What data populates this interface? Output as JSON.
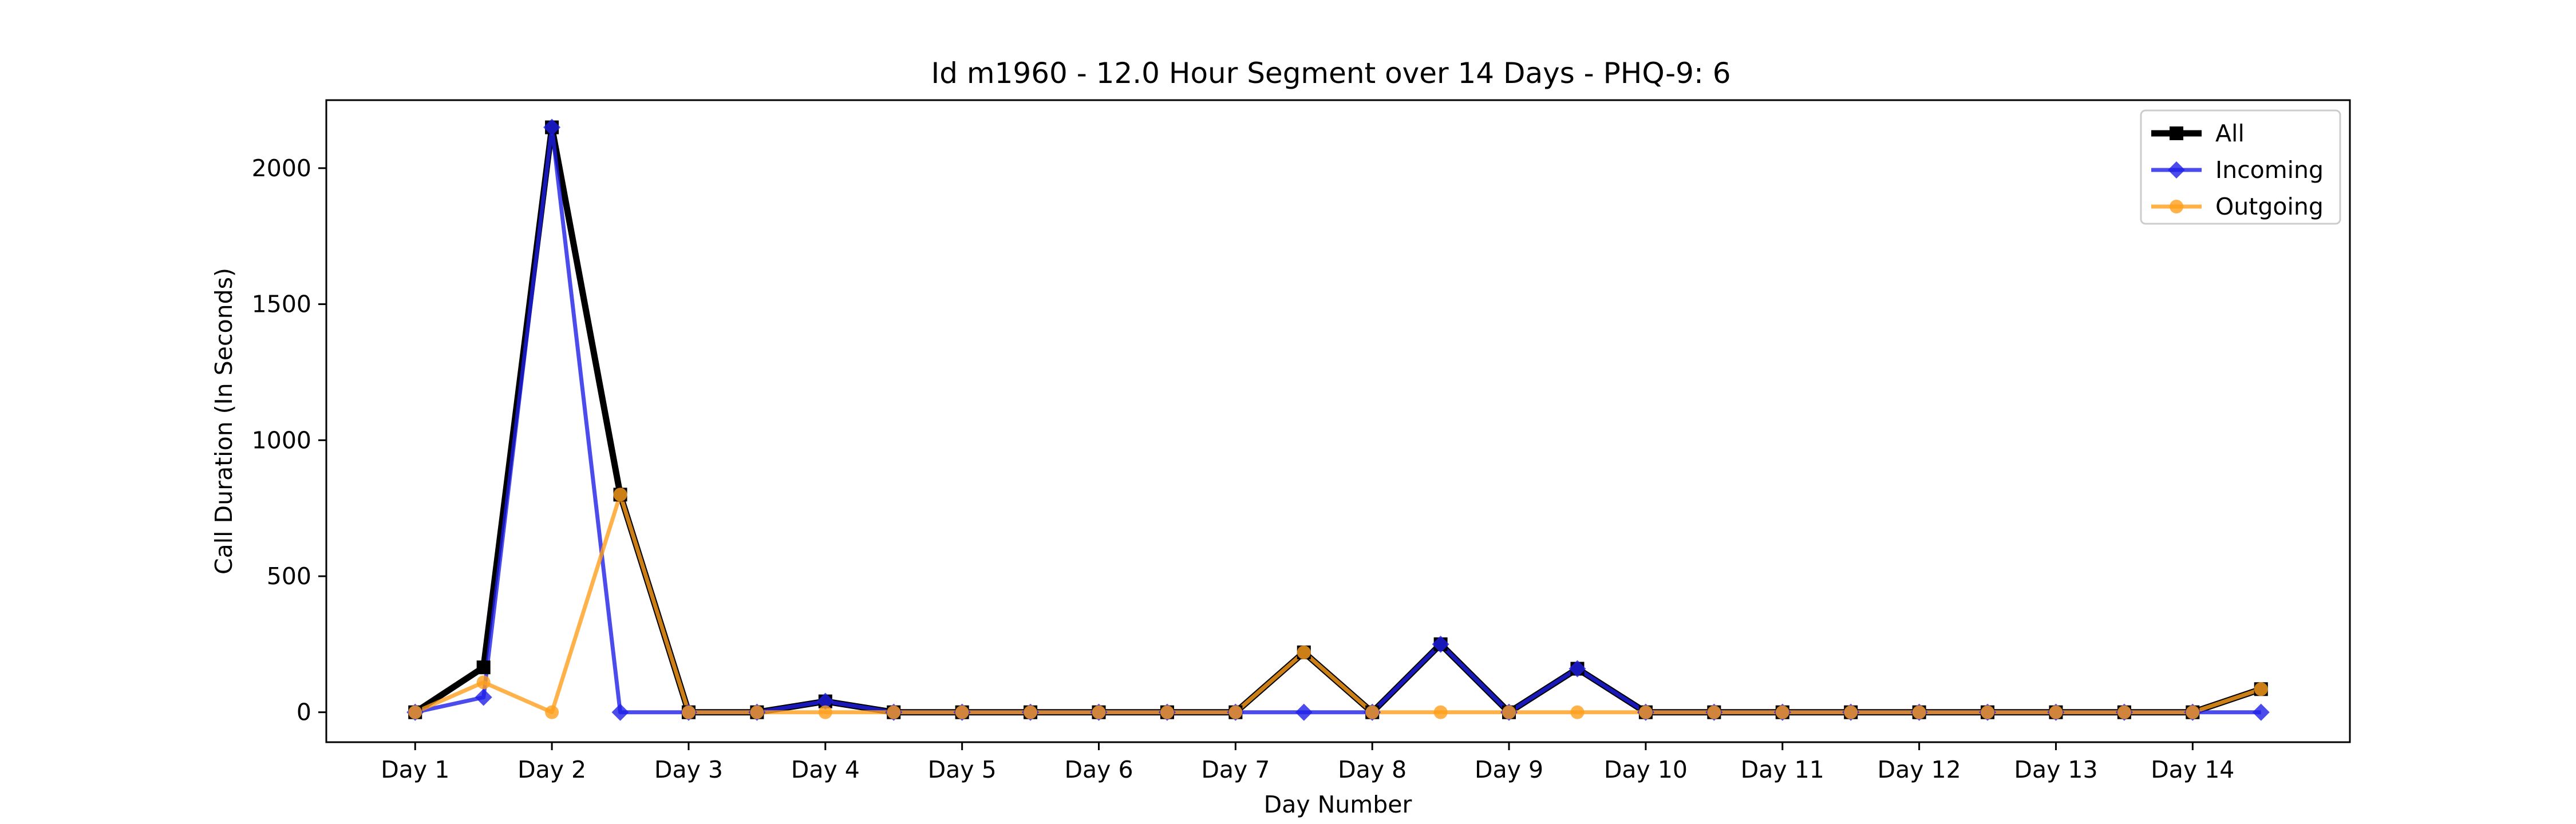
{
  "chart_data": {
    "type": "line",
    "title": "Id m1960 - 12.0 Hour Segment over 14 Days - PHQ-9: 6",
    "xlabel": "Day Number",
    "ylabel": "Call Duration (In Seconds)",
    "x_tick_labels": [
      "Day 1",
      "Day 2",
      "Day 3",
      "Day 4",
      "Day 5",
      "Day 6",
      "Day 7",
      "Day 8",
      "Day 9",
      "Day 10",
      "Day 11",
      "Day 12",
      "Day 13",
      "Day 14"
    ],
    "y_ticks": [
      0,
      500,
      1000,
      1500,
      2000
    ],
    "ylim": [
      -110,
      2250
    ],
    "xlim": [
      0.35,
      15.15
    ],
    "grid": false,
    "legend_position": "top-right",
    "x": [
      1,
      1.5,
      2,
      2.5,
      3,
      3.5,
      4,
      4.5,
      5,
      5.5,
      6,
      6.5,
      7,
      7.5,
      8,
      8.5,
      9,
      9.5,
      10,
      10.5,
      11,
      11.5,
      12,
      12.5,
      13,
      13.5,
      14,
      14.5
    ],
    "series": [
      {
        "name": "All",
        "color": "#000000",
        "marker": "square",
        "values": [
          0,
          165,
          2150,
          800,
          0,
          0,
          40,
          0,
          0,
          0,
          0,
          0,
          0,
          220,
          0,
          250,
          0,
          160,
          0,
          0,
          0,
          0,
          0,
          0,
          0,
          0,
          0,
          85
        ]
      },
      {
        "name": "Incoming",
        "color": "#1f1fe8",
        "marker": "diamond",
        "values": [
          0,
          55,
          2150,
          0,
          0,
          0,
          40,
          0,
          0,
          0,
          0,
          0,
          0,
          0,
          0,
          250,
          0,
          160,
          0,
          0,
          0,
          0,
          0,
          0,
          0,
          0,
          0,
          0
        ]
      },
      {
        "name": "Outgoing",
        "color": "#ff9f1c",
        "marker": "circle",
        "values": [
          0,
          110,
          0,
          800,
          0,
          0,
          0,
          0,
          0,
          0,
          0,
          0,
          0,
          220,
          0,
          0,
          0,
          0,
          0,
          0,
          0,
          0,
          0,
          0,
          0,
          0,
          0,
          85
        ]
      }
    ]
  }
}
